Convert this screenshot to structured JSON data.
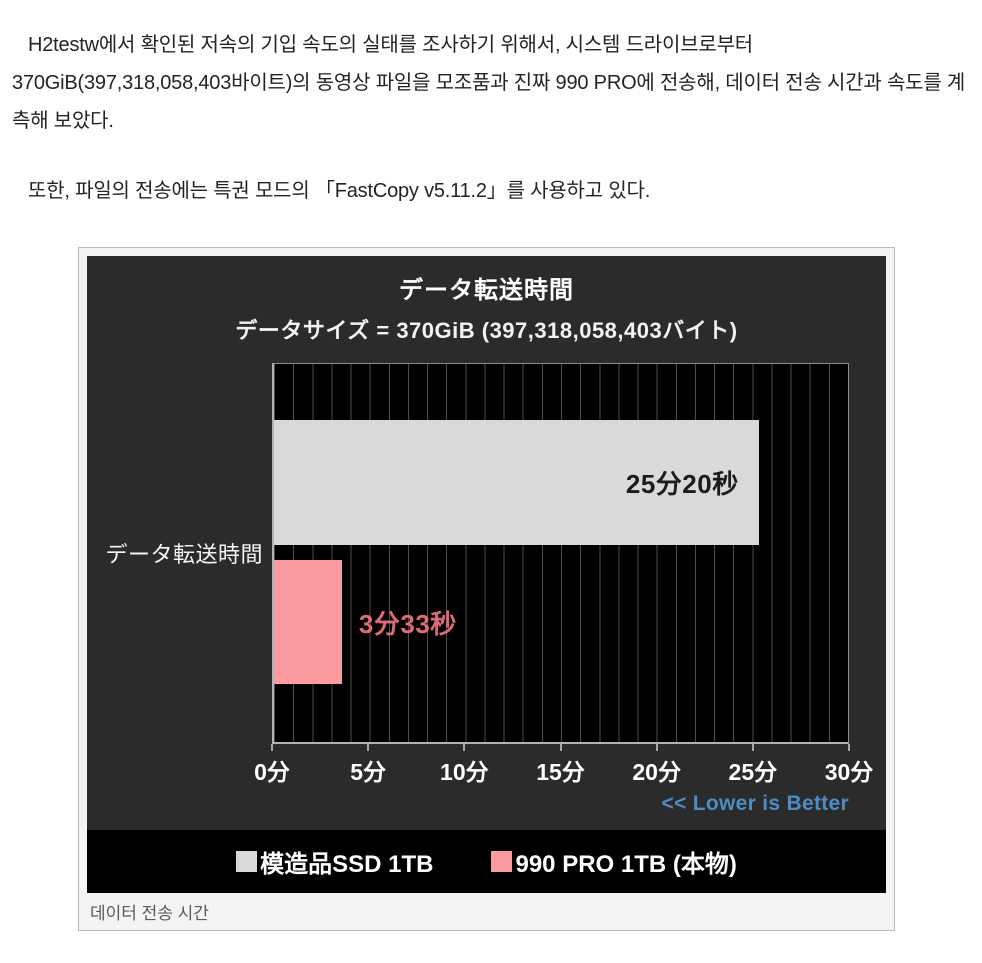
{
  "article": {
    "paragraph_1": "H2testw에서 확인된 저속의 기입 속도의 실태를 조사하기 위해서, 시스템 드라이브로부터 370GiB(397,318,058,403바이트)의 동영상 파일을 모조품과 진짜 990 PRO에 전송해, 데이터 전송 시간과 속도를 계측해 보았다.",
    "paragraph_2": "또한, 파일의 전송에는 특권 모드의 「FastCopy v5.11.2」를 사용하고 있다.",
    "figure_caption": "데이터 전송 시간"
  },
  "chart_data": {
    "type": "bar",
    "orientation": "horizontal",
    "title": "データ転送時間",
    "subtitle": "データサイズ = 370GiB (397,318,058,403バイト)",
    "category_label": "データ転送時間",
    "x_unit": "分",
    "xlim": [
      0,
      30
    ],
    "x_ticks": [
      "0分",
      "5分",
      "10分",
      "15分",
      "20分",
      "25分",
      "30分"
    ],
    "gridline_interval_minutes": 1,
    "grid": true,
    "series": [
      {
        "name": "模造品SSD 1TB",
        "value_label": "25分20秒",
        "value_minutes": 25.3333,
        "value_seconds": 1520,
        "color": "#d9d9d9",
        "label_color": "#1c1c1c"
      },
      {
        "name": "990 PRO 1TB (本物)",
        "value_label": "3分33秒",
        "value_minutes": 3.55,
        "value_seconds": 213,
        "color": "#f99ba1",
        "label_color": "#dd6b76"
      }
    ],
    "note": "<< Lower is Better",
    "note_color": "#4d8cc4",
    "legend_position": "bottom",
    "chart_bg": "#2b2b2b",
    "plot_bg": "#000000"
  }
}
